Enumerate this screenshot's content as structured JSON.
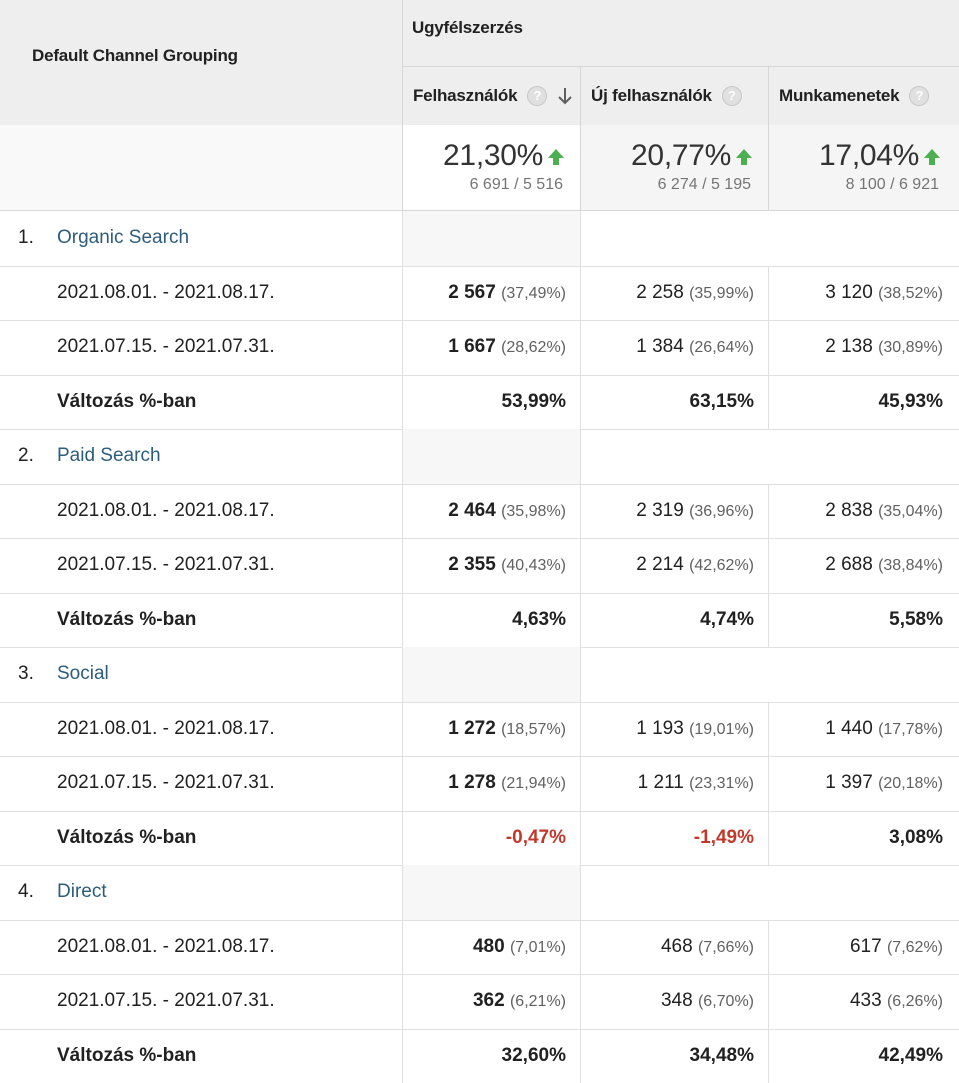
{
  "header": {
    "dimension_label": "Default Channel Grouping",
    "group_label": "Ugyfélszerzés",
    "columns": [
      {
        "label": "Felhasználók",
        "sorted": true
      },
      {
        "label": "Új felhasználók",
        "sorted": false
      },
      {
        "label": "Munkamenetek",
        "sorted": false
      }
    ],
    "help_glyph": "?"
  },
  "summary": [
    {
      "change": "21,30%",
      "values": "6 691 / 5 516"
    },
    {
      "change": "20,77%",
      "values": "6 274 / 5 195"
    },
    {
      "change": "17,04%",
      "values": "8 100 / 6 921"
    }
  ],
  "channels": [
    {
      "index": "1.",
      "name": "Organic Search",
      "rows": [
        {
          "label": "2021.08.01. - 2021.08.17.",
          "cells": [
            [
              "2 567",
              "(37,49%)"
            ],
            [
              "2 258",
              "(35,99%)"
            ],
            [
              "3 120",
              "(38,52%)"
            ]
          ]
        },
        {
          "label": "2021.07.15. - 2021.07.31.",
          "cells": [
            [
              "1 667",
              "(28,62%)"
            ],
            [
              "1 384",
              "(26,64%)"
            ],
            [
              "2 138",
              "(30,89%)"
            ]
          ]
        }
      ],
      "change_label": "Változás %-ban",
      "changes": [
        "53,99%",
        "63,15%",
        "45,93%"
      ]
    },
    {
      "index": "2.",
      "name": "Paid Search",
      "rows": [
        {
          "label": "2021.08.01. - 2021.08.17.",
          "cells": [
            [
              "2 464",
              "(35,98%)"
            ],
            [
              "2 319",
              "(36,96%)"
            ],
            [
              "2 838",
              "(35,04%)"
            ]
          ]
        },
        {
          "label": "2021.07.15. - 2021.07.31.",
          "cells": [
            [
              "2 355",
              "(40,43%)"
            ],
            [
              "2 214",
              "(42,62%)"
            ],
            [
              "2 688",
              "(38,84%)"
            ]
          ]
        }
      ],
      "change_label": "Változás %-ban",
      "changes": [
        "4,63%",
        "4,74%",
        "5,58%"
      ]
    },
    {
      "index": "3.",
      "name": "Social",
      "rows": [
        {
          "label": "2021.08.01. - 2021.08.17.",
          "cells": [
            [
              "1 272",
              "(18,57%)"
            ],
            [
              "1 193",
              "(19,01%)"
            ],
            [
              "1 440",
              "(17,78%)"
            ]
          ]
        },
        {
          "label": "2021.07.15. - 2021.07.31.",
          "cells": [
            [
              "1 278",
              "(21,94%)"
            ],
            [
              "1 211",
              "(23,31%)"
            ],
            [
              "1 397",
              "(20,18%)"
            ]
          ]
        }
      ],
      "change_label": "Változás %-ban",
      "changes": [
        "-0,47%",
        "-1,49%",
        "3,08%"
      ]
    },
    {
      "index": "4.",
      "name": "Direct",
      "rows": [
        {
          "label": "2021.08.01. - 2021.08.17.",
          "cells": [
            [
              "480",
              "(7,01%)"
            ],
            [
              "468",
              "(7,66%)"
            ],
            [
              "617",
              "(7,62%)"
            ]
          ]
        },
        {
          "label": "2021.07.15. - 2021.07.31.",
          "cells": [
            [
              "362",
              "(6,21%)"
            ],
            [
              "348",
              "(6,70%)"
            ],
            [
              "433",
              "(6,26%)"
            ]
          ]
        }
      ],
      "change_label": "Változás %-ban",
      "changes": [
        "32,60%",
        "34,48%",
        "42,49%"
      ]
    }
  ],
  "colors": {
    "link": "#2c5d7d",
    "negative": "#c0392b",
    "positive_arrow": "#4caf50",
    "header_bg": "#eeeeee"
  }
}
